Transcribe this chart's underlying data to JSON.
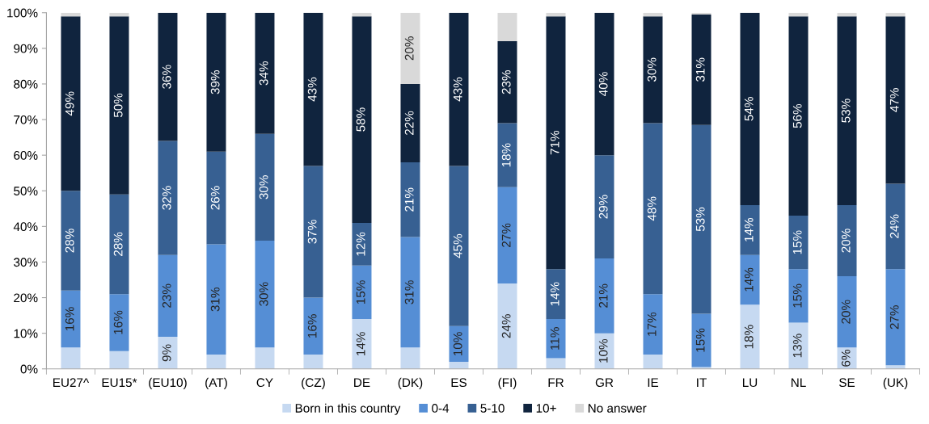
{
  "chart_data": {
    "type": "bar",
    "stacked": true,
    "legend": "bottom",
    "grid": false,
    "categories": [
      "EU27^",
      "EU15*",
      "(EU10)",
      "(AT)",
      "CY",
      "(CZ)",
      "DE",
      "(DK)",
      "ES",
      "(FI)",
      "FR",
      "GR",
      "IE",
      "IT",
      "LU",
      "NL",
      "SE",
      "(UK)"
    ],
    "ylim": [
      0,
      100
    ],
    "yticks": [
      {
        "value": 0,
        "label": "0%"
      },
      {
        "value": 10,
        "label": "10%"
      },
      {
        "value": 20,
        "label": "20%"
      },
      {
        "value": 30,
        "label": "30%"
      },
      {
        "value": 40,
        "label": "40%"
      },
      {
        "value": 50,
        "label": "50%"
      },
      {
        "value": 60,
        "label": "60%"
      },
      {
        "value": 70,
        "label": "70%"
      },
      {
        "value": 80,
        "label": "80%"
      },
      {
        "value": 90,
        "label": "90%"
      },
      {
        "value": 100,
        "label": "100%"
      }
    ],
    "series": [
      {
        "name": "Born in this country",
        "color": "#c6d9f1",
        "values": [
          6,
          5,
          9,
          4,
          6,
          4,
          14,
          6,
          2,
          24,
          3,
          10,
          4,
          0.5,
          18,
          13,
          6,
          1
        ],
        "value_labels": [
          null,
          null,
          "9%",
          null,
          null,
          null,
          "14%",
          null,
          null,
          "24%",
          null,
          "10%",
          null,
          null,
          "18%",
          "13%",
          "6%",
          null
        ]
      },
      {
        "name": "0-4",
        "color": "#558ed5",
        "values": [
          16,
          16,
          23,
          31,
          30,
          16,
          15,
          31,
          10,
          27,
          11,
          21,
          17,
          15,
          14,
          15,
          20,
          27
        ],
        "value_labels": [
          "16%",
          "16%",
          "23%",
          "31%",
          "30%",
          "16%",
          "15%",
          "31%",
          "10%",
          "27%",
          "11%",
          "21%",
          "17%",
          "15%",
          "14%",
          "15%",
          "20%",
          "27%"
        ]
      },
      {
        "name": "5-10",
        "color": "#376092",
        "values": [
          28,
          28,
          32,
          26,
          30,
          37,
          12,
          21,
          45,
          18,
          14,
          29,
          48,
          53,
          14,
          15,
          20,
          24
        ],
        "value_labels": [
          "28%",
          "28%",
          "32%",
          "26%",
          "30%",
          "37%",
          "12%",
          "21%",
          "45%",
          "18%",
          "14%",
          "29%",
          "48%",
          "53%",
          "14%",
          "15%",
          "20%",
          "24%"
        ]
      },
      {
        "name": "10+",
        "color": "#10243e",
        "values": [
          49,
          50,
          36,
          39,
          34,
          43,
          58,
          22,
          43,
          23,
          71,
          40,
          30,
          31,
          54,
          56,
          53,
          47
        ],
        "value_labels": [
          "49%",
          "50%",
          "36%",
          "39%",
          "34%",
          "43%",
          "58%",
          "22%",
          "43%",
          "23%",
          "71%",
          "40%",
          "30%",
          "31%",
          "54%",
          "56%",
          "53%",
          "47%"
        ]
      },
      {
        "name": "No answer",
        "color": "#d9d9d9",
        "values": [
          1,
          1,
          null,
          null,
          null,
          null,
          1,
          20,
          null,
          8,
          1,
          null,
          1,
          0.5,
          null,
          1,
          1,
          1
        ],
        "value_labels": [
          null,
          null,
          null,
          null,
          null,
          null,
          null,
          "20%",
          null,
          null,
          null,
          null,
          null,
          null,
          null,
          null,
          null,
          null
        ]
      }
    ]
  }
}
